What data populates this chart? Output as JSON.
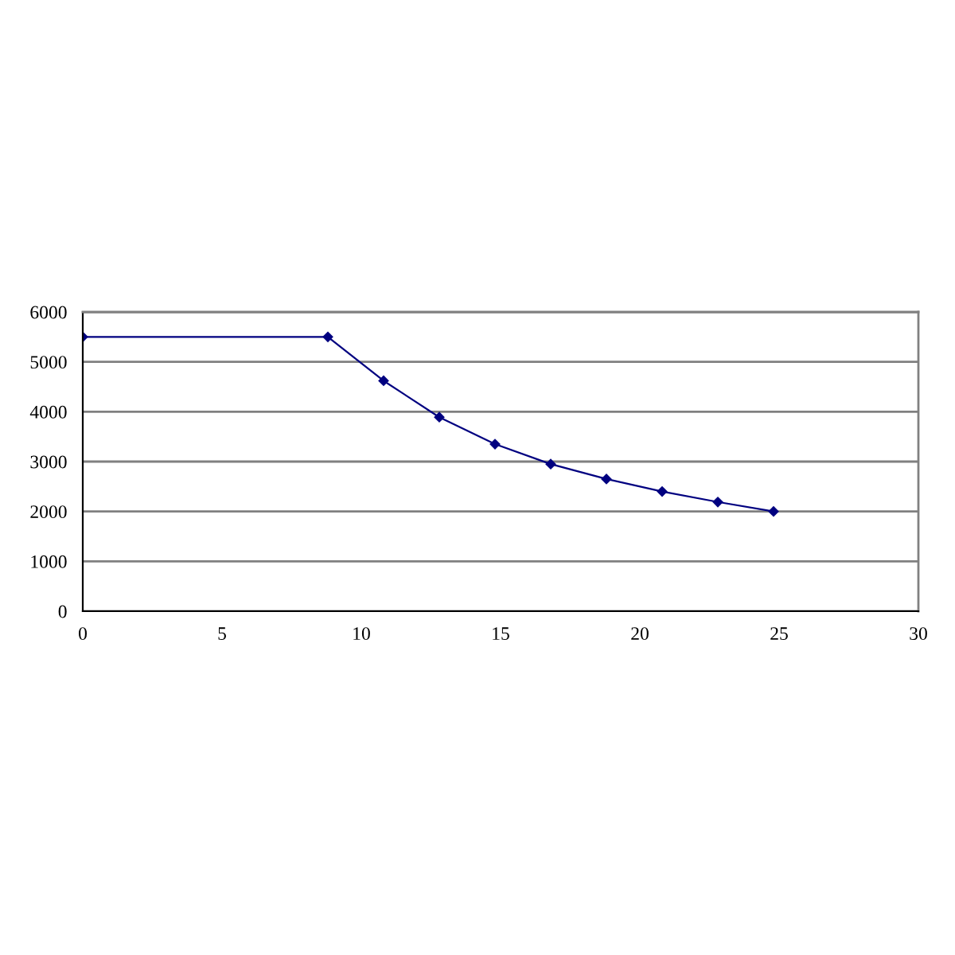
{
  "chart_data": {
    "type": "line",
    "x": [
      0,
      8.8,
      10.8,
      12.8,
      14.8,
      16.8,
      18.8,
      20.8,
      22.8,
      24.8
    ],
    "series": [
      {
        "color": "#000080",
        "values": [
          5500,
          5500,
          4620,
          3890,
          3350,
          2950,
          2650,
          2400,
          2190,
          2000
        ]
      }
    ],
    "xlim": [
      0,
      30
    ],
    "xticks": [
      0,
      5,
      10,
      15,
      20,
      25,
      30
    ],
    "ylim": [
      0,
      6000
    ],
    "yticks": [
      0,
      1000,
      2000,
      3000,
      4000,
      5000,
      6000
    ],
    "grid": "y",
    "marker": "diamond",
    "line_style": "solid"
  }
}
